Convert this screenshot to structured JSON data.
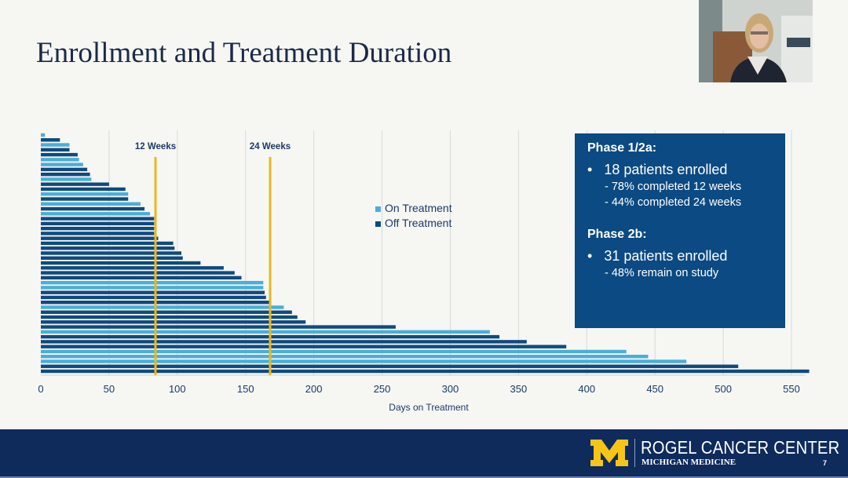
{
  "slide": {
    "title": "Enrollment and Treatment Duration",
    "page_number": "7"
  },
  "info_box": {
    "phase1_heading": "Phase 1/2a:",
    "phase1_bullet": "18 patients enrolled",
    "phase1_sub1": "- 78% completed 12 weeks",
    "phase1_sub2": "- 44% completed 24 weeks",
    "phase2_heading": "Phase 2b:",
    "phase2_bullet": "31 patients enrolled",
    "phase2_sub1": "- 48% remain on study",
    "bullet_char": "•",
    "background": "#0b4a82"
  },
  "footer": {
    "org": "ROGEL CANCER CENTER",
    "sub_org": "MICHIGAN MEDICINE",
    "logo_letter": "M",
    "logo_color": "#f5c518",
    "background": "#0e2b5c"
  },
  "chart_data": {
    "type": "bar",
    "orientation": "horizontal",
    "title": "",
    "xlabel": "Days on Treatment",
    "ylabel": "",
    "xlim": [
      0,
      560
    ],
    "xticks": [
      0,
      50,
      100,
      150,
      200,
      250,
      300,
      350,
      400,
      450,
      500,
      550
    ],
    "grid": "vertical",
    "legend": {
      "placement": "center",
      "entries": [
        {
          "name": "On Treatment",
          "color": "#4aaed8"
        },
        {
          "name": "Off Treatment",
          "color": "#0f4a7e"
        }
      ]
    },
    "reference_lines": [
      {
        "label": "12 Weeks",
        "x": 84,
        "color": "#e8b820"
      },
      {
        "label": "24 Weeks",
        "x": 168,
        "color": "#e8b820"
      }
    ],
    "patients": [
      {
        "days": 3,
        "status": "On Treatment"
      },
      {
        "days": 14,
        "status": "Off Treatment"
      },
      {
        "days": 21,
        "status": "On Treatment"
      },
      {
        "days": 21,
        "status": "Off Treatment"
      },
      {
        "days": 27,
        "status": "Off Treatment"
      },
      {
        "days": 28,
        "status": "On Treatment"
      },
      {
        "days": 31,
        "status": "On Treatment"
      },
      {
        "days": 34,
        "status": "Off Treatment"
      },
      {
        "days": 36,
        "status": "Off Treatment"
      },
      {
        "days": 37,
        "status": "On Treatment"
      },
      {
        "days": 50,
        "status": "Off Treatment"
      },
      {
        "days": 62,
        "status": "Off Treatment"
      },
      {
        "days": 64,
        "status": "On Treatment"
      },
      {
        "days": 64,
        "status": "Off Treatment"
      },
      {
        "days": 73,
        "status": "On Treatment"
      },
      {
        "days": 76,
        "status": "Off Treatment"
      },
      {
        "days": 80,
        "status": "On Treatment"
      },
      {
        "days": 83,
        "status": "Off Treatment"
      },
      {
        "days": 83,
        "status": "Off Treatment"
      },
      {
        "days": 83,
        "status": "Off Treatment"
      },
      {
        "days": 83,
        "status": "Off Treatment"
      },
      {
        "days": 86,
        "status": "Off Treatment"
      },
      {
        "days": 97,
        "status": "Off Treatment"
      },
      {
        "days": 98,
        "status": "Off Treatment"
      },
      {
        "days": 103,
        "status": "Off Treatment"
      },
      {
        "days": 104,
        "status": "Off Treatment"
      },
      {
        "days": 117,
        "status": "Off Treatment"
      },
      {
        "days": 134,
        "status": "Off Treatment"
      },
      {
        "days": 142,
        "status": "Off Treatment"
      },
      {
        "days": 147,
        "status": "Off Treatment"
      },
      {
        "days": 163,
        "status": "On Treatment"
      },
      {
        "days": 163,
        "status": "On Treatment"
      },
      {
        "days": 164,
        "status": "Off Treatment"
      },
      {
        "days": 165,
        "status": "Off Treatment"
      },
      {
        "days": 168,
        "status": "Off Treatment"
      },
      {
        "days": 178,
        "status": "On Treatment"
      },
      {
        "days": 184,
        "status": "Off Treatment"
      },
      {
        "days": 188,
        "status": "Off Treatment"
      },
      {
        "days": 194,
        "status": "Off Treatment"
      },
      {
        "days": 260,
        "status": "Off Treatment"
      },
      {
        "days": 329,
        "status": "On Treatment"
      },
      {
        "days": 336,
        "status": "Off Treatment"
      },
      {
        "days": 356,
        "status": "Off Treatment"
      },
      {
        "days": 385,
        "status": "Off Treatment"
      },
      {
        "days": 429,
        "status": "On Treatment"
      },
      {
        "days": 445,
        "status": "On Treatment"
      },
      {
        "days": 473,
        "status": "On Treatment"
      },
      {
        "days": 511,
        "status": "Off Treatment"
      },
      {
        "days": 563,
        "status": "Off Treatment"
      }
    ]
  }
}
